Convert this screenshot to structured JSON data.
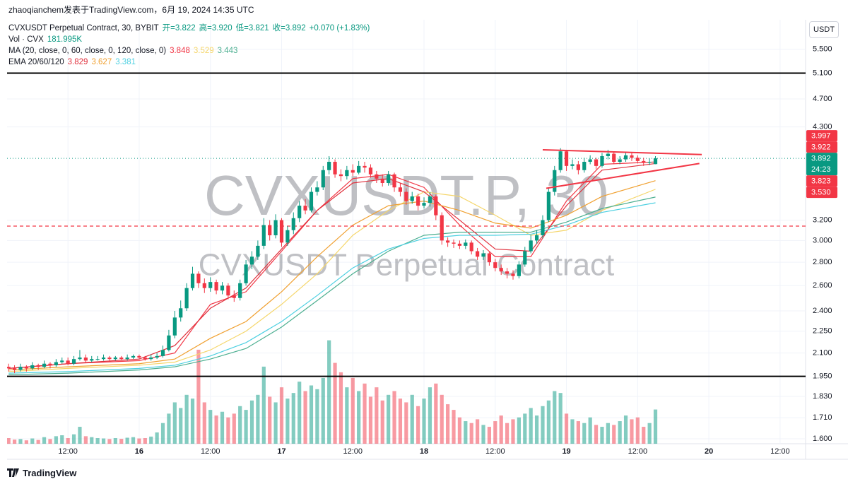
{
  "chart_data": {
    "type": "candlestick",
    "attribution": "zhaoqianchem发表于TradingView.com，6月 19, 2024 14:35 UTC",
    "title": "CVXUSDT Perpetual Contract, 30, BYBIT",
    "ohlc_labels": [
      "开=3.822",
      "高=3.920",
      "低=3.821",
      "收=3.892",
      "+0.070 (+1.83%)"
    ],
    "volume_title": "Vol · CVX",
    "volume_label": "181.995K",
    "watermark_symbol": "CVXUSDT.P, 30",
    "watermark_name": "CVXUSDT Perpetual Contract",
    "currency": "USDT",
    "brand": "TradingView",
    "up_color": "#089981",
    "down_color": "#f23645",
    "log_scale": true,
    "grid": true,
    "xlim": [
      1.74,
      136.3
    ],
    "xticks": [
      {
        "value": 12,
        "label": "12:00"
      },
      {
        "value": 24,
        "label": "16"
      },
      {
        "value": 36,
        "label": "12:00"
      },
      {
        "value": 48,
        "label": "17"
      },
      {
        "value": 60,
        "label": "12:00"
      },
      {
        "value": 72,
        "label": "18"
      },
      {
        "value": 84,
        "label": "12:00"
      },
      {
        "value": 96,
        "label": "19"
      },
      {
        "value": 108,
        "label": "12:00"
      },
      {
        "value": 120,
        "label": "20"
      },
      {
        "value": 132,
        "label": "12:00"
      }
    ],
    "ylim": [
      1.575,
      6.04
    ],
    "yticks": [
      {
        "value": 1.6,
        "label": "1.600"
      },
      {
        "value": 1.71,
        "label": "1.710"
      },
      {
        "value": 1.83,
        "label": "1.830"
      },
      {
        "value": 1.95,
        "label": "1.950"
      },
      {
        "value": 2.1,
        "label": "2.100"
      },
      {
        "value": 2.25,
        "label": "2.250"
      },
      {
        "value": 2.4,
        "label": "2.400"
      },
      {
        "value": 2.6,
        "label": "2.600"
      },
      {
        "value": 2.8,
        "label": "2.800"
      },
      {
        "value": 3.0,
        "label": "3.000"
      },
      {
        "value": 3.2,
        "label": "3.200"
      },
      {
        "value": 4.3,
        "label": "4.300"
      },
      {
        "value": 4.7,
        "label": "4.700"
      },
      {
        "value": 5.1,
        "label": "5.100"
      },
      {
        "value": 5.5,
        "label": "5.500"
      }
    ],
    "volume_ylim": [
      0,
      620000
    ],
    "x": [
      2,
      3,
      4,
      5,
      6,
      7,
      8,
      9,
      10,
      11,
      12,
      13,
      14,
      15,
      16,
      17,
      18,
      19,
      20,
      21,
      22,
      23,
      24,
      25,
      26,
      27,
      28,
      29,
      30,
      31,
      32,
      33,
      34,
      35,
      36,
      37,
      38,
      39,
      40,
      41,
      42,
      43,
      44,
      45,
      46,
      47,
      48,
      49,
      50,
      51,
      52,
      53,
      54,
      55,
      56,
      57,
      58,
      59,
      60,
      61,
      62,
      63,
      64,
      65,
      66,
      67,
      68,
      69,
      70,
      71,
      72,
      73,
      74,
      75,
      76,
      77,
      78,
      79,
      80,
      81,
      82,
      83,
      84,
      85,
      86,
      87,
      88,
      89,
      90,
      91,
      92,
      93,
      94,
      95,
      96,
      97,
      98,
      99,
      100,
      101,
      102,
      103,
      104,
      105,
      106,
      107,
      108,
      109,
      110,
      111
    ],
    "open": [
      2.01,
      2.0,
      1.99,
      2.01,
      2.0,
      2.02,
      2.01,
      2.03,
      2.02,
      2.04,
      2.05,
      2.03,
      2.06,
      2.07,
      2.05,
      2.06,
      2.06,
      2.07,
      2.06,
      2.07,
      2.06,
      2.07,
      2.08,
      2.07,
      2.06,
      2.07,
      2.08,
      2.12,
      2.22,
      2.35,
      2.42,
      2.58,
      2.7,
      2.62,
      2.58,
      2.63,
      2.56,
      2.6,
      2.52,
      2.5,
      2.62,
      2.78,
      2.85,
      2.95,
      3.15,
      3.05,
      3.2,
      2.98,
      3.1,
      3.22,
      3.35,
      3.3,
      3.5,
      3.55,
      3.75,
      3.85,
      3.7,
      3.68,
      3.75,
      3.72,
      3.8,
      3.78,
      3.7,
      3.65,
      3.6,
      3.7,
      3.55,
      3.5,
      3.4,
      3.45,
      3.35,
      3.38,
      3.45,
      3.25,
      3.0,
      2.98,
      2.97,
      2.95,
      2.98,
      2.9,
      2.85,
      2.88,
      2.8,
      2.75,
      2.72,
      2.7,
      2.68,
      2.78,
      2.9,
      3.0,
      3.05,
      3.2,
      3.5,
      3.75,
      3.98,
      3.8,
      3.82,
      3.75,
      3.85,
      3.88,
      3.8,
      3.92,
      3.95,
      3.85,
      3.88,
      3.93,
      3.9,
      3.86,
      3.84,
      3.822
    ],
    "high": [
      2.03,
      2.02,
      2.03,
      2.02,
      2.04,
      2.03,
      2.05,
      2.04,
      2.06,
      2.07,
      2.07,
      2.08,
      2.12,
      2.09,
      2.08,
      2.08,
      2.09,
      2.08,
      2.08,
      2.08,
      2.09,
      2.09,
      2.09,
      2.08,
      2.09,
      2.1,
      2.15,
      2.26,
      2.4,
      2.48,
      2.62,
      2.76,
      2.72,
      2.66,
      2.67,
      2.65,
      2.63,
      2.62,
      2.56,
      2.65,
      2.82,
      2.9,
      3.0,
      3.22,
      3.2,
      3.26,
      3.22,
      3.14,
      3.28,
      3.4,
      3.42,
      3.55,
      3.62,
      3.8,
      3.92,
      3.88,
      3.76,
      3.8,
      3.82,
      3.86,
      3.85,
      3.82,
      3.74,
      3.7,
      3.74,
      3.72,
      3.6,
      3.54,
      3.5,
      3.48,
      3.44,
      3.5,
      3.47,
      3.28,
      3.03,
      3.01,
      3.0,
      3.01,
      3.0,
      2.93,
      2.91,
      2.9,
      2.83,
      2.78,
      2.75,
      2.73,
      2.81,
      2.94,
      3.05,
      3.1,
      3.25,
      3.55,
      3.8,
      4.02,
      4.0,
      3.88,
      3.86,
      3.9,
      3.93,
      3.9,
      3.96,
      4.0,
      3.97,
      3.92,
      3.96,
      3.96,
      3.93,
      3.9,
      3.89,
      3.92
    ],
    "low": [
      1.98,
      1.97,
      1.98,
      1.98,
      1.99,
      1.99,
      2.0,
      2.0,
      2.01,
      2.03,
      2.02,
      2.02,
      2.05,
      2.04,
      2.04,
      2.05,
      2.05,
      2.05,
      2.05,
      2.05,
      2.05,
      2.06,
      2.06,
      2.05,
      2.05,
      2.06,
      2.07,
      2.11,
      2.2,
      2.32,
      2.4,
      2.56,
      2.58,
      2.54,
      2.55,
      2.53,
      2.53,
      2.49,
      2.47,
      2.48,
      2.6,
      2.74,
      2.82,
      2.92,
      3.0,
      3.02,
      2.94,
      2.95,
      3.06,
      3.18,
      3.26,
      3.28,
      3.46,
      3.52,
      3.7,
      3.66,
      3.62,
      3.64,
      3.68,
      3.7,
      3.72,
      3.66,
      3.6,
      3.56,
      3.57,
      3.5,
      3.45,
      3.36,
      3.37,
      3.3,
      3.32,
      3.34,
      3.2,
      2.96,
      2.94,
      2.93,
      2.92,
      2.92,
      2.87,
      2.82,
      2.82,
      2.77,
      2.72,
      2.69,
      2.66,
      2.65,
      2.66,
      2.76,
      2.88,
      2.97,
      3.02,
      3.18,
      3.46,
      3.72,
      3.74,
      3.76,
      3.7,
      3.72,
      3.82,
      3.76,
      3.78,
      3.88,
      3.82,
      3.82,
      3.85,
      3.86,
      3.83,
      3.8,
      3.81,
      3.821
    ],
    "close": [
      2.0,
      1.99,
      2.01,
      2.0,
      2.02,
      2.01,
      2.03,
      2.02,
      2.04,
      2.05,
      2.03,
      2.06,
      2.07,
      2.05,
      2.06,
      2.06,
      2.07,
      2.06,
      2.07,
      2.06,
      2.07,
      2.08,
      2.07,
      2.06,
      2.07,
      2.08,
      2.12,
      2.22,
      2.35,
      2.42,
      2.58,
      2.7,
      2.62,
      2.58,
      2.63,
      2.56,
      2.6,
      2.52,
      2.5,
      2.62,
      2.78,
      2.85,
      2.95,
      3.15,
      3.05,
      3.2,
      2.98,
      3.1,
      3.22,
      3.35,
      3.3,
      3.5,
      3.55,
      3.75,
      3.85,
      3.7,
      3.68,
      3.75,
      3.72,
      3.8,
      3.78,
      3.7,
      3.65,
      3.6,
      3.7,
      3.55,
      3.5,
      3.4,
      3.45,
      3.35,
      3.38,
      3.45,
      3.25,
      3.0,
      2.98,
      2.97,
      2.95,
      2.98,
      2.9,
      2.85,
      2.88,
      2.8,
      2.75,
      2.72,
      2.7,
      2.68,
      2.78,
      2.9,
      3.0,
      3.05,
      3.2,
      3.5,
      3.75,
      3.98,
      3.8,
      3.82,
      3.75,
      3.85,
      3.88,
      3.8,
      3.92,
      3.95,
      3.85,
      3.88,
      3.93,
      3.9,
      3.86,
      3.84,
      3.85,
      3.892
    ],
    "volume": [
      30000,
      22000,
      25000,
      18000,
      28000,
      20000,
      35000,
      25000,
      40000,
      45000,
      30000,
      50000,
      90000,
      40000,
      35000,
      30000,
      28000,
      25000,
      30000,
      26000,
      32000,
      35000,
      28000,
      30000,
      38000,
      60000,
      110000,
      160000,
      220000,
      190000,
      260000,
      240000,
      500000,
      220000,
      180000,
      150000,
      170000,
      140000,
      160000,
      200000,
      180000,
      230000,
      260000,
      410000,
      250000,
      220000,
      300000,
      240000,
      270000,
      330000,
      280000,
      310000,
      290000,
      350000,
      550000,
      430000,
      380000,
      300000,
      350000,
      280000,
      320000,
      250000,
      300000,
      230000,
      260000,
      280000,
      240000,
      220000,
      260000,
      200000,
      240000,
      300000,
      320000,
      260000,
      210000,
      180000,
      140000,
      120000,
      110000,
      130000,
      100000,
      90000,
      120000,
      150000,
      110000,
      130000,
      140000,
      160000,
      190000,
      150000,
      200000,
      230000,
      280000,
      270000,
      160000,
      130000,
      120000,
      110000,
      140000,
      100000,
      90000,
      110000,
      100000,
      120000,
      150000,
      130000,
      140000,
      90000,
      110000,
      181995
    ],
    "indicators": [
      {
        "title": "MA (20, close, 0, 60, close, 0, 120, close, 0)",
        "x": [
          2,
          12,
          24,
          30,
          36,
          42,
          48,
          54,
          60,
          66,
          72,
          78,
          84,
          90,
          96,
          102,
          111
        ],
        "lines": [
          {
            "color": "#f23645",
            "values": [
              2.0,
              2.03,
              2.05,
              2.1,
              2.45,
              2.55,
              2.9,
              3.3,
              3.65,
              3.7,
              3.55,
              3.15,
              2.85,
              2.85,
              3.4,
              3.82,
              3.848
            ]
          },
          {
            "color": "#f5d66b",
            "values": [
              1.98,
              2.0,
              2.02,
              2.04,
              2.12,
              2.25,
              2.45,
              2.7,
              3.05,
              3.3,
              3.5,
              3.45,
              3.25,
              3.05,
              3.1,
              3.3,
              3.529
            ]
          },
          {
            "color": "#4caf90",
            "values": [
              1.96,
              1.97,
              1.99,
              2.01,
              2.06,
              2.13,
              2.28,
              2.48,
              2.7,
              2.9,
              3.05,
              3.08,
              3.08,
              3.08,
              3.18,
              3.32,
              3.443
            ]
          }
        ]
      },
      {
        "title": "EMA 20/60/120",
        "x": [
          2,
          12,
          24,
          30,
          36,
          42,
          48,
          54,
          60,
          66,
          72,
          78,
          84,
          90,
          96,
          102,
          111
        ],
        "lines": [
          {
            "color": "#e0303c",
            "values": [
              2.0,
              2.03,
              2.06,
              2.15,
              2.42,
              2.58,
              2.92,
              3.3,
              3.6,
              3.65,
              3.5,
              3.2,
              2.92,
              2.9,
              3.35,
              3.75,
              3.829
            ]
          },
          {
            "color": "#f0a030",
            "values": [
              1.99,
              2.01,
              2.03,
              2.06,
              2.2,
              2.32,
              2.55,
              2.85,
              3.15,
              3.35,
              3.4,
              3.3,
              3.17,
              3.12,
              3.25,
              3.45,
              3.627
            ]
          },
          {
            "color": "#4dd0e1",
            "values": [
              1.97,
              1.98,
              2.0,
              2.02,
              2.08,
              2.17,
              2.32,
              2.52,
              2.75,
              2.92,
              3.02,
              3.05,
              3.05,
              3.06,
              3.15,
              3.28,
              3.381
            ]
          }
        ]
      }
    ],
    "hlines": [
      {
        "value": 5.1,
        "color": "#000000",
        "style": "solid"
      },
      {
        "value": 1.95,
        "color": "#000000",
        "style": "solid"
      },
      {
        "value": 3.14,
        "color": "#f23645",
        "style": "dashed"
      }
    ],
    "trendlines": [
      {
        "color": "#f23645",
        "x": [
          92.0,
          118.8
        ],
        "values": [
          4.0,
          3.94
        ]
      },
      {
        "color": "#f23645",
        "x": [
          92.6,
          118.4
        ],
        "values": [
          3.54,
          3.83
        ]
      }
    ],
    "price_badges": [
      {
        "value": 3.997,
        "label": "3.997",
        "color": "#f23645"
      },
      {
        "value": 3.922,
        "label": "3.922",
        "color": "#f23645"
      },
      {
        "value": 3.892,
        "label": "3.892",
        "color": "#089981",
        "countdown": "24:23"
      },
      {
        "value": 3.823,
        "label": "3.823",
        "color": "#f23645"
      },
      {
        "value": 3.53,
        "label": "3.530",
        "color": "#f23645"
      }
    ]
  }
}
